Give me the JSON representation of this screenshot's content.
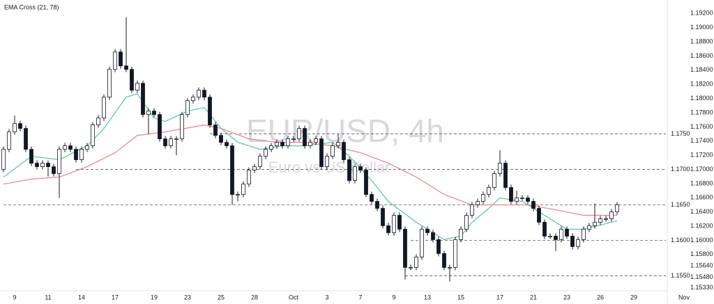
{
  "chart_data": {
    "type": "candlestick",
    "title": "EMA Cross (21, 78)",
    "watermark": "EUR/USD, 4h",
    "watermark_subtitle": "Euro vs US Dollar",
    "categories": [
      null,
      null,
      "9",
      null,
      null,
      null,
      null,
      null,
      "11",
      null,
      null,
      null,
      null,
      null,
      "14",
      null,
      null,
      null,
      null,
      null,
      "17",
      null,
      null,
      null,
      null,
      null,
      null,
      "19",
      null,
      null,
      null,
      null,
      null,
      "23",
      null,
      null,
      null,
      null,
      null,
      "25",
      null,
      null,
      null,
      null,
      null,
      "28",
      null,
      null,
      null,
      null,
      null,
      null,
      "Oct",
      null,
      null,
      null,
      null,
      null,
      "3",
      null,
      null,
      null,
      null,
      null,
      "7",
      null,
      null,
      null,
      null,
      null,
      "9",
      null,
      null,
      null,
      null,
      null,
      "13",
      null,
      null,
      null,
      null,
      null,
      "15",
      null,
      null,
      null,
      null,
      null,
      null,
      "17",
      null,
      null,
      null,
      null,
      null,
      "21",
      null,
      null,
      null,
      null,
      null,
      "23",
      null,
      null,
      null,
      null,
      null,
      "26",
      null,
      null,
      null,
      null,
      null,
      "29",
      null,
      null,
      null,
      null,
      null,
      null,
      null,
      null,
      "Nov"
    ],
    "open": [
      1.17,
      1.17284,
      1.17529,
      1.17647,
      1.17578,
      1.17284,
      1.17088,
      1.17039,
      1.17088,
      1.17039,
      1.16941,
      1.17284,
      1.17333,
      1.17284,
      1.17137,
      1.17284,
      1.17333,
      1.17627,
      1.17725,
      1.18019,
      1.18411,
      1.18656,
      1.1846,
      1.18411,
      1.18117,
      1.18215,
      1.17774,
      1.17823,
      1.17774,
      1.17431,
      1.17333,
      1.17431,
      1.17431,
      1.17774,
      1.1797,
      1.18019,
      1.18117,
      1.18019,
      1.17627,
      1.1748,
      1.17382,
      1.17333,
      1.16647,
      1.16647,
      1.16794,
      1.1699,
      1.17039,
      1.17186,
      1.17284,
      1.17333,
      1.17382,
      1.17333,
      1.17431,
      1.17431,
      1.17578,
      1.17333,
      1.17382,
      1.17431,
      1.17039,
      1.17186,
      1.17333,
      1.17382,
      1.17137,
      1.16843,
      1.17039,
      1.1699,
      1.16647,
      1.16549,
      1.16451,
      1.16206,
      1.16108,
      1.16353,
      1.16157,
      1.15618,
      1.15618,
      1.15765,
      1.16157,
      1.16108,
      1.1601,
      1.15814,
      1.15618,
      1.15618,
      1.1601,
      1.16157,
      1.16353,
      1.165,
      1.16549,
      1.16647,
      1.16745,
      1.16941,
      1.17088,
      1.16745,
      1.16549,
      1.16598,
      1.16598,
      1.16549,
      1.16451,
      1.16255,
      1.16059,
      1.16059,
      1.1601,
      1.16157,
      1.16059,
      1.15912,
      1.1601,
      1.16157,
      1.16206,
      1.16255,
      1.16304,
      1.16304,
      1.16402,
      null,
      null,
      null,
      null,
      null,
      null,
      null,
      null,
      null,
      null,
      null,
      null
    ],
    "high": [
      1.17324,
      1.17569,
      1.1776,
      1.17687,
      1.17618,
      1.17324,
      1.17128,
      1.17128,
      1.17128,
      1.17079,
      1.17324,
      1.17373,
      1.17373,
      1.17324,
      1.17324,
      1.17373,
      1.17667,
      1.17765,
      1.18059,
      1.18451,
      1.18696,
      1.18696,
      1.19146,
      1.18451,
      1.18255,
      1.18255,
      1.17863,
      1.17863,
      1.17814,
      1.17471,
      1.17471,
      1.17471,
      1.17814,
      1.1801,
      1.18059,
      1.18157,
      1.18157,
      1.18059,
      1.17667,
      1.1752,
      1.17422,
      1.17373,
      1.16687,
      1.16834,
      1.1703,
      1.17079,
      1.17226,
      1.17324,
      1.17373,
      1.17422,
      1.17422,
      1.17471,
      1.17471,
      1.17618,
      1.17618,
      1.17422,
      1.17471,
      1.17471,
      1.17226,
      1.17373,
      1.175,
      1.17422,
      1.17177,
      1.17079,
      1.17079,
      1.1703,
      1.16687,
      1.16589,
      1.16491,
      1.16246,
      1.16393,
      1.16393,
      1.16197,
      1.15658,
      1.15805,
      1.16197,
      1.16197,
      1.16148,
      1.1605,
      1.15854,
      1.15658,
      1.1605,
      1.16197,
      1.16393,
      1.1654,
      1.16589,
      1.16687,
      1.16785,
      1.16981,
      1.1727,
      1.17128,
      1.16785,
      1.167,
      1.16638,
      1.16638,
      1.16589,
      1.16491,
      1.16295,
      1.16099,
      1.16099,
      1.16197,
      1.16197,
      1.16099,
      1.1605,
      1.16197,
      1.16246,
      1.1652,
      1.16344,
      1.16344,
      1.16442,
      1.1654,
      null,
      null,
      null,
      null,
      null,
      null,
      null,
      null,
      null,
      null,
      null,
      null
    ],
    "low": [
      1.1696,
      1.17244,
      1.17489,
      1.17538,
      1.17244,
      1.17048,
      1.16999,
      1.16999,
      1.169,
      1.16901,
      1.166,
      1.17244,
      1.17244,
      1.17097,
      1.17097,
      1.17244,
      1.17293,
      1.17587,
      1.17685,
      1.17979,
      1.18371,
      1.1842,
      1.18371,
      1.18077,
      1.18077,
      1.17734,
      1.175,
      1.17734,
      1.17391,
      1.17293,
      1.17293,
      1.172,
      1.17391,
      1.17734,
      1.1793,
      1.17979,
      1.17979,
      1.17587,
      1.1744,
      1.17342,
      1.17293,
      1.165,
      1.1655,
      1.16607,
      1.16754,
      1.1695,
      1.16999,
      1.17146,
      1.17244,
      1.17293,
      1.17293,
      1.17293,
      1.17391,
      1.17391,
      1.17293,
      1.17293,
      1.17342,
      1.16999,
      1.16999,
      1.17146,
      1.17293,
      1.17097,
      1.16803,
      1.16803,
      1.1695,
      1.16607,
      1.16509,
      1.16411,
      1.16166,
      1.16068,
      1.16068,
      1.16117,
      1.1545,
      1.15578,
      1.15578,
      1.15725,
      1.16068,
      1.1597,
      1.15774,
      1.15578,
      1.1542,
      1.15578,
      1.1597,
      1.16117,
      1.16313,
      1.1646,
      1.16509,
      1.16607,
      1.16705,
      1.16901,
      1.16705,
      1.16509,
      1.16509,
      1.16558,
      1.16509,
      1.16411,
      1.16215,
      1.16019,
      1.16019,
      1.1585,
      1.1597,
      1.16019,
      1.15872,
      1.15872,
      1.1597,
      1.16117,
      1.16166,
      1.16215,
      1.16264,
      1.16264,
      1.16362,
      null,
      null,
      null,
      null,
      null,
      null,
      null,
      null,
      null,
      null,
      null,
      null
    ],
    "close": [
      1.17284,
      1.17529,
      1.17647,
      1.17578,
      1.17284,
      1.17088,
      1.17039,
      1.17088,
      1.17039,
      1.16941,
      1.17284,
      1.17333,
      1.17284,
      1.17137,
      1.17284,
      1.17333,
      1.17627,
      1.17725,
      1.18019,
      1.18411,
      1.18656,
      1.1846,
      1.18411,
      1.18117,
      1.18215,
      1.17774,
      1.17823,
      1.17774,
      1.17431,
      1.17333,
      1.17431,
      1.17431,
      1.17774,
      1.1797,
      1.18019,
      1.18117,
      1.18019,
      1.17627,
      1.1748,
      1.17382,
      1.17333,
      1.16647,
      1.16647,
      1.16794,
      1.1699,
      1.17039,
      1.17186,
      1.17284,
      1.17333,
      1.17382,
      1.17333,
      1.17431,
      1.17431,
      1.17578,
      1.17333,
      1.17382,
      1.17431,
      1.17039,
      1.17186,
      1.17333,
      1.17382,
      1.17137,
      1.16843,
      1.17039,
      1.1699,
      1.16647,
      1.16549,
      1.16451,
      1.16206,
      1.16108,
      1.16353,
      1.16157,
      1.15618,
      1.15618,
      1.15765,
      1.16157,
      1.16108,
      1.1601,
      1.15814,
      1.15618,
      1.15618,
      1.1601,
      1.16157,
      1.16353,
      1.165,
      1.16549,
      1.16647,
      1.16745,
      1.16941,
      1.17088,
      1.16745,
      1.16549,
      1.16598,
      1.16598,
      1.16549,
      1.16451,
      1.16255,
      1.16059,
      1.16059,
      1.1601,
      1.16157,
      1.16059,
      1.15912,
      1.1601,
      1.16157,
      1.16206,
      1.16255,
      1.16304,
      1.16304,
      1.16402,
      1.165,
      null,
      null,
      null,
      null,
      null,
      null,
      null,
      null,
      null,
      null,
      null,
      null
    ],
    "up_color": "#ffffff",
    "down_color": "#131722",
    "lines": [
      {
        "color": "#5fbfa6",
        "x": [
          0,
          5,
          10,
          15,
          18,
          22,
          24,
          27,
          29,
          33,
          36,
          39,
          42,
          46,
          50,
          54,
          59,
          62,
          66,
          69,
          74,
          79,
          82,
          84,
          87,
          89,
          93,
          97,
          101,
          104,
          110
        ],
        "values": [
          1.16892,
          1.17186,
          1.17137,
          1.17333,
          1.17578,
          1.18019,
          1.18068,
          1.17725,
          1.17676,
          1.17823,
          1.17872,
          1.17578,
          1.17382,
          1.17284,
          1.17333,
          1.17333,
          1.17382,
          1.17186,
          1.16843,
          1.16549,
          1.16255,
          1.1601,
          1.16059,
          1.16255,
          1.16451,
          1.16598,
          1.16549,
          1.16353,
          1.16157,
          1.16157,
          1.16275
        ]
      },
      {
        "color": "#e8838c",
        "x": [
          0,
          5,
          10,
          15,
          20,
          24,
          29,
          36,
          39,
          44,
          49,
          54,
          59,
          64,
          69,
          74,
          79,
          84,
          89,
          94,
          99,
          104,
          110
        ],
        "values": [
          1.16794,
          1.16863,
          1.16892,
          1.17039,
          1.17235,
          1.1748,
          1.17529,
          1.17627,
          1.17578,
          1.17431,
          1.17382,
          1.17382,
          1.17333,
          1.17235,
          1.17088,
          1.16892,
          1.16647,
          1.165,
          1.165,
          1.165,
          1.16431,
          1.16353,
          1.16353
        ]
      }
    ],
    "levels": [
      {
        "value": 1.175,
        "label": "1.1750",
        "from": 37
      },
      {
        "value": 1.17,
        "label": "1.1700",
        "from": 13
      },
      {
        "value": 1.165,
        "label": "1.1650",
        "from": 0
      },
      {
        "value": 1.16,
        "label": "1.1600",
        "from": 73
      },
      {
        "value": 1.155,
        "label": "1.1550",
        "from": 72
      }
    ],
    "ylim": [
      1.1522,
      1.1934
    ],
    "yticks": [
      {
        "value": 1.192,
        "label": "1.19200"
      },
      {
        "value": 1.19,
        "label": "1.19000"
      },
      {
        "value": 1.188,
        "label": "1.18800"
      },
      {
        "value": 1.186,
        "label": "1.18600"
      },
      {
        "value": 1.184,
        "label": "1.18400"
      },
      {
        "value": 1.182,
        "label": "1.18200"
      },
      {
        "value": 1.18,
        "label": "1.18000"
      },
      {
        "value": 1.178,
        "label": "1.17800"
      },
      {
        "value": 1.176,
        "label": "1.17600"
      },
      {
        "value": 1.174,
        "label": "1.17400"
      },
      {
        "value": 1.172,
        "label": "1.17200"
      },
      {
        "value": 1.17,
        "label": "1.17000"
      },
      {
        "value": 1.168,
        "label": "1.16800"
      },
      {
        "value": 1.166,
        "label": "1.16600"
      },
      {
        "value": 1.164,
        "label": "1.16400"
      },
      {
        "value": 1.162,
        "label": "1.16200"
      },
      {
        "value": 1.16,
        "label": "1.16000"
      },
      {
        "value": 1.158,
        "label": "1.15800"
      },
      {
        "value": 1.1564,
        "label": "1.15640"
      },
      {
        "value": 1.1548,
        "label": "1.15480"
      },
      {
        "value": 1.1533,
        "label": "1.15330"
      }
    ]
  }
}
